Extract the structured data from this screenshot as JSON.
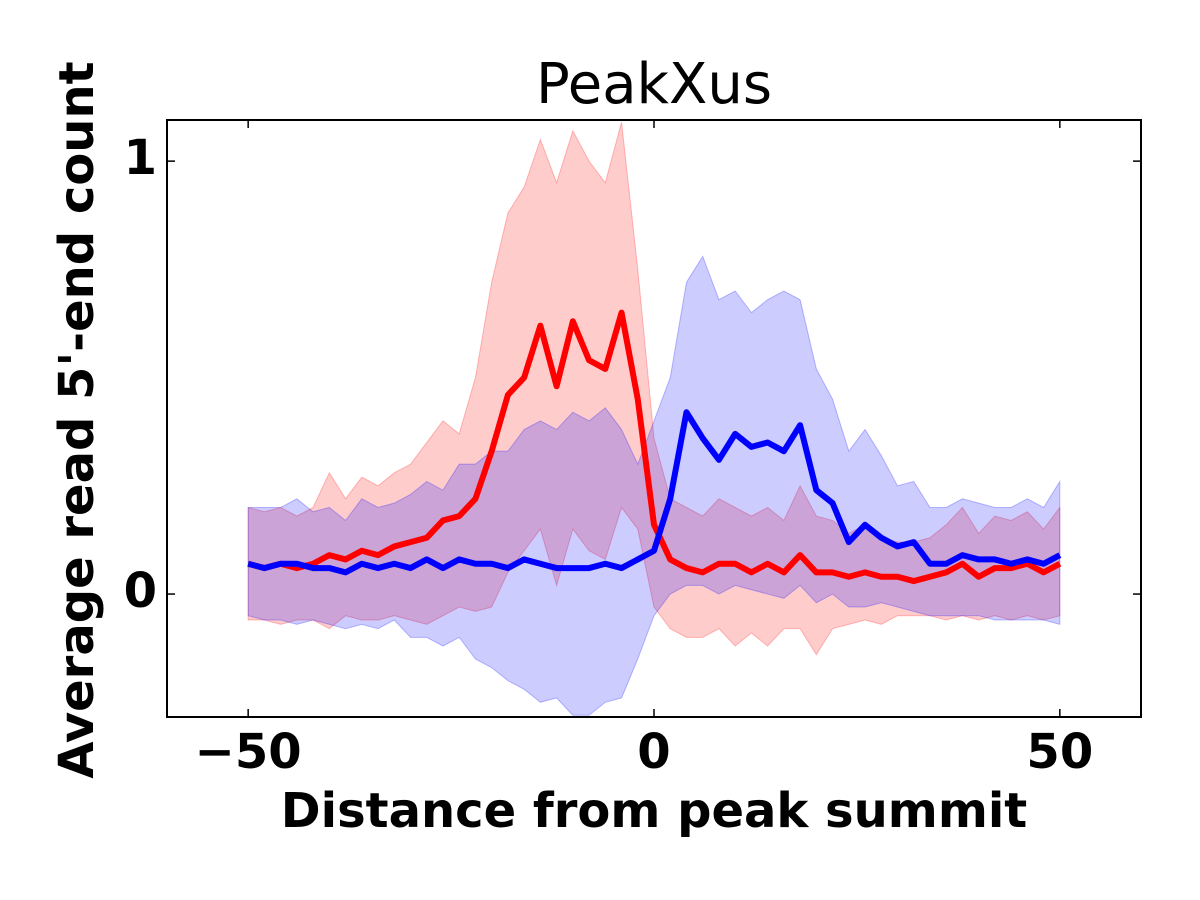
{
  "chart_data": {
    "type": "line",
    "title": "PeakXus",
    "xlabel": "Distance from peak summit",
    "ylabel": "Average read 5'-end count",
    "x": [
      -50,
      -48,
      -46,
      -44,
      -42,
      -40,
      -38,
      -36,
      -34,
      -32,
      -30,
      -28,
      -26,
      -24,
      -22,
      -20,
      -18,
      -16,
      -14,
      -12,
      -10,
      -8,
      -6,
      -4,
      -2,
      0,
      2,
      4,
      6,
      8,
      10,
      12,
      14,
      16,
      18,
      20,
      22,
      24,
      26,
      28,
      30,
      32,
      34,
      36,
      38,
      40,
      42,
      44,
      46,
      48,
      50
    ],
    "xlim": [
      -60,
      60
    ],
    "xticks": [
      {
        "value": -50,
        "label": "−50"
      },
      0,
      50
    ],
    "ylim": [
      -0.284,
      1.095
    ],
    "yticks": [
      0,
      1
    ],
    "series": [
      {
        "color": "#ff0000",
        "values": [
          0.07,
          0.06,
          0.07,
          0.06,
          0.07,
          0.09,
          0.08,
          0.1,
          0.09,
          0.11,
          0.12,
          0.13,
          0.17,
          0.18,
          0.22,
          0.33,
          0.46,
          0.5,
          0.62,
          0.48,
          0.63,
          0.54,
          0.52,
          0.65,
          0.45,
          0.16,
          0.08,
          0.06,
          0.05,
          0.07,
          0.07,
          0.05,
          0.07,
          0.05,
          0.09,
          0.05,
          0.05,
          0.04,
          0.05,
          0.04,
          0.04,
          0.03,
          0.04,
          0.05,
          0.07,
          0.04,
          0.06,
          0.06,
          0.07,
          0.05,
          0.07
        ],
        "upper": [
          0.2,
          0.19,
          0.2,
          0.18,
          0.2,
          0.28,
          0.22,
          0.27,
          0.25,
          0.28,
          0.3,
          0.35,
          0.4,
          0.37,
          0.5,
          0.72,
          0.88,
          0.94,
          1.05,
          0.95,
          1.07,
          1.0,
          0.95,
          1.09,
          0.75,
          0.36,
          0.22,
          0.2,
          0.18,
          0.22,
          0.2,
          0.18,
          0.2,
          0.17,
          0.25,
          0.18,
          0.17,
          0.14,
          0.16,
          0.13,
          0.12,
          0.12,
          0.13,
          0.16,
          0.2,
          0.14,
          0.18,
          0.17,
          0.19,
          0.15,
          0.2
        ],
        "lower": [
          -0.06,
          -0.06,
          -0.07,
          -0.06,
          -0.06,
          -0.08,
          -0.05,
          -0.06,
          -0.06,
          -0.05,
          -0.06,
          -0.07,
          -0.05,
          -0.03,
          -0.04,
          -0.03,
          0.05,
          0.1,
          0.15,
          0.02,
          0.15,
          0.1,
          0.08,
          0.2,
          0.15,
          -0.03,
          -0.08,
          -0.1,
          -0.1,
          -0.08,
          -0.12,
          -0.09,
          -0.12,
          -0.08,
          -0.08,
          -0.14,
          -0.08,
          -0.07,
          -0.06,
          -0.07,
          -0.05,
          -0.05,
          -0.05,
          -0.06,
          -0.05,
          -0.06,
          -0.05,
          -0.06,
          -0.05,
          -0.06,
          -0.05
        ]
      },
      {
        "color": "#0000ff",
        "values": [
          0.07,
          0.06,
          0.07,
          0.07,
          0.06,
          0.06,
          0.05,
          0.07,
          0.06,
          0.07,
          0.06,
          0.08,
          0.06,
          0.08,
          0.07,
          0.07,
          0.06,
          0.08,
          0.07,
          0.06,
          0.06,
          0.06,
          0.07,
          0.06,
          0.08,
          0.1,
          0.22,
          0.42,
          0.36,
          0.31,
          0.37,
          0.34,
          0.35,
          0.33,
          0.39,
          0.24,
          0.21,
          0.12,
          0.16,
          0.13,
          0.11,
          0.12,
          0.07,
          0.07,
          0.09,
          0.08,
          0.08,
          0.07,
          0.08,
          0.07,
          0.09
        ],
        "upper": [
          0.2,
          0.2,
          0.2,
          0.22,
          0.19,
          0.2,
          0.17,
          0.22,
          0.2,
          0.21,
          0.23,
          0.26,
          0.24,
          0.3,
          0.3,
          0.33,
          0.33,
          0.38,
          0.4,
          0.38,
          0.42,
          0.4,
          0.43,
          0.38,
          0.3,
          0.4,
          0.5,
          0.72,
          0.78,
          0.68,
          0.7,
          0.65,
          0.68,
          0.7,
          0.68,
          0.52,
          0.45,
          0.33,
          0.38,
          0.32,
          0.25,
          0.26,
          0.2,
          0.2,
          0.22,
          0.21,
          0.2,
          0.2,
          0.22,
          0.2,
          0.26
        ],
        "lower": [
          -0.05,
          -0.06,
          -0.06,
          -0.07,
          -0.06,
          -0.07,
          -0.08,
          -0.07,
          -0.08,
          -0.06,
          -0.1,
          -0.1,
          -0.12,
          -0.1,
          -0.15,
          -0.17,
          -0.2,
          -0.22,
          -0.25,
          -0.24,
          -0.28,
          -0.28,
          -0.25,
          -0.24,
          -0.15,
          -0.05,
          0.0,
          0.02,
          0.02,
          0.0,
          0.02,
          0.01,
          0.0,
          -0.01,
          0.02,
          -0.02,
          0.0,
          -0.03,
          -0.03,
          -0.02,
          -0.03,
          -0.04,
          -0.05,
          -0.05,
          -0.05,
          -0.05,
          -0.06,
          -0.06,
          -0.06,
          -0.06,
          -0.07
        ]
      }
    ]
  }
}
